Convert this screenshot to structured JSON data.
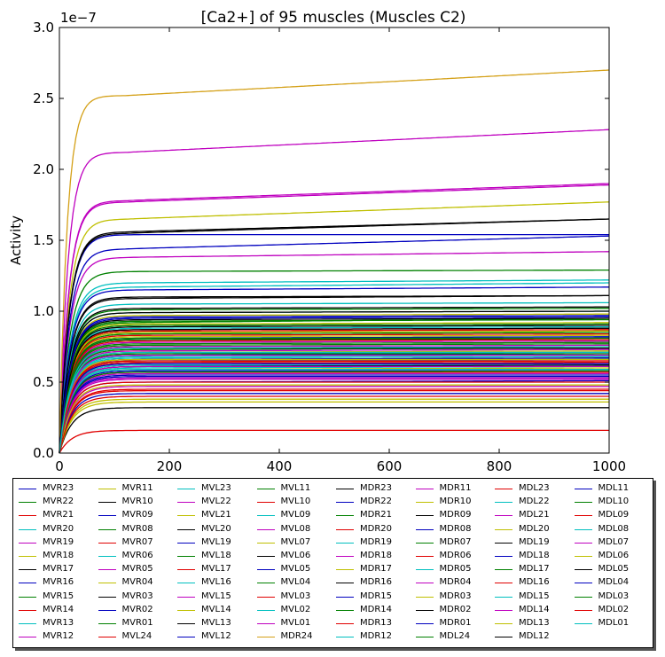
{
  "chart_data": {
    "type": "line",
    "title": "[Ca2+] of 95 muscles (Muscles C2)",
    "xlabel": "",
    "ylabel": "Activity",
    "y_offset_label": "1e−7",
    "xlim": [
      0,
      1000
    ],
    "ylim": [
      0,
      3.0
    ],
    "x_ticks": [
      "0",
      "200",
      "400",
      "600",
      "800",
      "1000"
    ],
    "y_ticks": [
      "0.0",
      "0.5",
      "1.0",
      "1.5",
      "2.0",
      "2.5",
      "3.0"
    ],
    "grid": false,
    "legend_placement": "below",
    "curve_model": "rise-to-plateau with slow drift",
    "series": [
      {
        "name": "MVR23",
        "color": "#0000bf",
        "plateau": 1.54,
        "end": 1.54
      },
      {
        "name": "MVR22",
        "color": "#008000",
        "plateau": 1.28,
        "end": 1.29
      },
      {
        "name": "MVR21",
        "color": "#e00000",
        "plateau": 0.87,
        "end": 0.88
      },
      {
        "name": "MVR20",
        "color": "#00bfbf",
        "plateau": 0.6,
        "end": 0.61
      },
      {
        "name": "MVR19",
        "color": "#bf00bf",
        "plateau": 1.38,
        "end": 1.42
      },
      {
        "name": "MVR18",
        "color": "#bfbf00",
        "plateau": 0.74,
        "end": 0.75
      },
      {
        "name": "MVR17",
        "color": "#000000",
        "plateau": 1.1,
        "end": 1.11
      },
      {
        "name": "MVR16",
        "color": "#0000bf",
        "plateau": 0.5,
        "end": 0.51
      },
      {
        "name": "MVR15",
        "color": "#008000",
        "plateau": 0.92,
        "end": 0.95
      },
      {
        "name": "MVR14",
        "color": "#e00000",
        "plateau": 0.44,
        "end": 0.44
      },
      {
        "name": "MVR13",
        "color": "#00bfbf",
        "plateau": 1.17,
        "end": 1.2
      },
      {
        "name": "MVR12",
        "color": "#bf00bf",
        "plateau": 0.56,
        "end": 0.56
      },
      {
        "name": "MVR11",
        "color": "#bfbf00",
        "plateau": 1.65,
        "end": 1.77
      },
      {
        "name": "MVR10",
        "color": "#000000",
        "plateau": 0.8,
        "end": 0.81
      },
      {
        "name": "MVR09",
        "color": "#0000bf",
        "plateau": 1.44,
        "end": 1.53
      },
      {
        "name": "MVR08",
        "color": "#008000",
        "plateau": 1.01,
        "end": 1.02
      },
      {
        "name": "MVR07",
        "color": "#e00000",
        "plateau": 0.66,
        "end": 0.67
      },
      {
        "name": "MVR06",
        "color": "#00bfbf",
        "plateau": 1.2,
        "end": 1.22
      },
      {
        "name": "MVR05",
        "color": "#bf00bf",
        "plateau": 2.12,
        "end": 2.28
      },
      {
        "name": "MVR04",
        "color": "#bfbf00",
        "plateau": 0.38,
        "end": 0.38
      },
      {
        "name": "MVR03",
        "color": "#000000",
        "plateau": 1.55,
        "end": 1.65
      },
      {
        "name": "MVR02",
        "color": "#0000bf",
        "plateau": 0.69,
        "end": 0.7
      },
      {
        "name": "MVR01",
        "color": "#008000",
        "plateau": 0.85,
        "end": 0.86
      },
      {
        "name": "MVL24",
        "color": "#e00000",
        "plateau": 0.16,
        "end": 0.16
      },
      {
        "name": "MVL23",
        "color": "#00bfbf",
        "plateau": 0.7,
        "end": 0.71
      },
      {
        "name": "MVL22",
        "color": "#bf00bf",
        "plateau": 1.77,
        "end": 1.89
      },
      {
        "name": "MVL21",
        "color": "#bfbf00",
        "plateau": 0.97,
        "end": 0.98
      },
      {
        "name": "MVL20",
        "color": "#000000",
        "plateau": 1.02,
        "end": 1.03
      },
      {
        "name": "MVL19",
        "color": "#0000bf",
        "plateau": 1.15,
        "end": 1.17
      },
      {
        "name": "MVL18",
        "color": "#008000",
        "plateau": 0.8,
        "end": 0.8
      },
      {
        "name": "MVL17",
        "color": "#e00000",
        "plateau": 0.64,
        "end": 0.65
      },
      {
        "name": "MVL16",
        "color": "#00bfbf",
        "plateau": 0.62,
        "end": 0.62
      },
      {
        "name": "MVL15",
        "color": "#bf00bf",
        "plateau": 0.75,
        "end": 0.76
      },
      {
        "name": "MVL14",
        "color": "#bfbf00",
        "plateau": 0.59,
        "end": 0.6
      },
      {
        "name": "MVL13",
        "color": "#000000",
        "plateau": 0.32,
        "end": 0.32
      },
      {
        "name": "MVL12",
        "color": "#0000bf",
        "plateau": 0.54,
        "end": 0.54
      },
      {
        "name": "MVL11",
        "color": "#008000",
        "plateau": 0.93,
        "end": 0.94
      },
      {
        "name": "MVL10",
        "color": "#e00000",
        "plateau": 0.86,
        "end": 0.87
      },
      {
        "name": "MVL09",
        "color": "#00bfbf",
        "plateau": 1.05,
        "end": 1.06
      },
      {
        "name": "MVL08",
        "color": "#bf00bf",
        "plateau": 1.78,
        "end": 1.9
      },
      {
        "name": "MVL07",
        "color": "#bfbf00",
        "plateau": 0.91,
        "end": 0.92
      },
      {
        "name": "MVL06",
        "color": "#000000",
        "plateau": 1.56,
        "end": 1.65
      },
      {
        "name": "MVL05",
        "color": "#0000bf",
        "plateau": 0.66,
        "end": 0.67
      },
      {
        "name": "MVL04",
        "color": "#008000",
        "plateau": 0.7,
        "end": 0.7
      },
      {
        "name": "MVL03",
        "color": "#e00000",
        "plateau": 0.45,
        "end": 0.45
      },
      {
        "name": "MVL02",
        "color": "#00bfbf",
        "plateau": 0.99,
        "end": 1.0
      },
      {
        "name": "MVL01",
        "color": "#bf00bf",
        "plateau": 0.78,
        "end": 0.79
      },
      {
        "name": "MDR24",
        "color": "#d4a017",
        "plateau": 2.52,
        "end": 2.7
      },
      {
        "name": "MDR23",
        "color": "#000000",
        "plateau": 1.09,
        "end": 1.11
      },
      {
        "name": "MDR22",
        "color": "#0000bf",
        "plateau": 0.55,
        "end": 0.55
      },
      {
        "name": "MDR21",
        "color": "#008000",
        "plateau": 0.84,
        "end": 0.85
      },
      {
        "name": "MDR20",
        "color": "#e00000",
        "plateau": 0.63,
        "end": 0.64
      },
      {
        "name": "MDR19",
        "color": "#00bfbf",
        "plateau": 0.88,
        "end": 0.89
      },
      {
        "name": "MDR18",
        "color": "#bf00bf",
        "plateau": 0.72,
        "end": 0.73
      },
      {
        "name": "MDR17",
        "color": "#bfbf00",
        "plateau": 0.82,
        "end": 0.83
      },
      {
        "name": "MDR16",
        "color": "#000000",
        "plateau": 0.99,
        "end": 1.0
      },
      {
        "name": "MDR15",
        "color": "#0000bf",
        "plateau": 0.58,
        "end": 0.58
      },
      {
        "name": "MDR14",
        "color": "#008000",
        "plateau": 0.76,
        "end": 0.77
      },
      {
        "name": "MDR13",
        "color": "#e00000",
        "plateau": 0.5,
        "end": 0.5
      },
      {
        "name": "MDR12",
        "color": "#00bfbf",
        "plateau": 0.67,
        "end": 0.68
      },
      {
        "name": "MDR11",
        "color": "#bf00bf",
        "plateau": 0.52,
        "end": 0.52
      },
      {
        "name": "MDR10",
        "color": "#bfbf00",
        "plateau": 0.36,
        "end": 0.36
      },
      {
        "name": "MDR09",
        "color": "#000000",
        "plateau": 0.89,
        "end": 0.9
      },
      {
        "name": "MDR08",
        "color": "#0000bf",
        "plateau": 0.96,
        "end": 0.97
      },
      {
        "name": "MDR07",
        "color": "#008000",
        "plateau": 0.73,
        "end": 0.74
      },
      {
        "name": "MDR06",
        "color": "#e00000",
        "plateau": 0.57,
        "end": 0.57
      },
      {
        "name": "MDR05",
        "color": "#00bfbf",
        "plateau": 0.65,
        "end": 0.66
      },
      {
        "name": "MDR04",
        "color": "#bf00bf",
        "plateau": 0.47,
        "end": 0.47
      },
      {
        "name": "MDR03",
        "color": "#bfbf00",
        "plateau": 0.71,
        "end": 0.72
      },
      {
        "name": "MDR02",
        "color": "#000000",
        "plateau": 0.61,
        "end": 0.62
      },
      {
        "name": "MDR01",
        "color": "#0000bf",
        "plateau": 0.42,
        "end": 0.42
      },
      {
        "name": "MDL24",
        "color": "#008000",
        "plateau": 0.9,
        "end": 0.91
      },
      {
        "name": "MDL23",
        "color": "#e00000",
        "plateau": 0.79,
        "end": 0.8
      },
      {
        "name": "MDL22",
        "color": "#00bfbf",
        "plateau": 0.68,
        "end": 0.69
      },
      {
        "name": "MDL21",
        "color": "#bf00bf",
        "plateau": 0.53,
        "end": 0.53
      },
      {
        "name": "MDL20",
        "color": "#bfbf00",
        "plateau": 0.48,
        "end": 0.48
      },
      {
        "name": "MDL19",
        "color": "#000000",
        "plateau": 0.94,
        "end": 0.95
      },
      {
        "name": "MDL18",
        "color": "#0000bf",
        "plateau": 0.63,
        "end": 0.63
      },
      {
        "name": "MDL17",
        "color": "#008000",
        "plateau": 0.77,
        "end": 0.78
      },
      {
        "name": "MDL16",
        "color": "#e00000",
        "plateau": 0.4,
        "end": 0.4
      },
      {
        "name": "MDL15",
        "color": "#00bfbf",
        "plateau": 0.59,
        "end": 0.59
      },
      {
        "name": "MDL14",
        "color": "#bf00bf",
        "plateau": 0.69,
        "end": 0.69
      },
      {
        "name": "MDL13",
        "color": "#bfbf00",
        "plateau": 0.85,
        "end": 0.86
      },
      {
        "name": "MDL12",
        "color": "#000000",
        "plateau": 0.74,
        "end": 0.74
      },
      {
        "name": "MDL11",
        "color": "#0000bf",
        "plateau": 0.81,
        "end": 0.82
      },
      {
        "name": "MDL10",
        "color": "#008000",
        "plateau": 0.57,
        "end": 0.58
      },
      {
        "name": "MDL09",
        "color": "#e00000",
        "plateau": 0.83,
        "end": 0.84
      },
      {
        "name": "MDL08",
        "color": "#00bfbf",
        "plateau": 0.71,
        "end": 0.71
      },
      {
        "name": "MDL07",
        "color": "#bf00bf",
        "plateau": 0.61,
        "end": 0.61
      },
      {
        "name": "MDL06",
        "color": "#bfbf00",
        "plateau": 0.66,
        "end": 0.66
      },
      {
        "name": "MDL05",
        "color": "#000000",
        "plateau": 0.87,
        "end": 0.88
      },
      {
        "name": "MDL04",
        "color": "#0000bf",
        "plateau": 0.95,
        "end": 0.96
      },
      {
        "name": "MDL03",
        "color": "#008000",
        "plateau": 0.81,
        "end": 0.81
      },
      {
        "name": "MDL02",
        "color": "#e00000",
        "plateau": 0.65,
        "end": 0.65
      },
      {
        "name": "MDL01",
        "color": "#00bfbf",
        "plateau": 0.74,
        "end": 0.75
      }
    ]
  }
}
